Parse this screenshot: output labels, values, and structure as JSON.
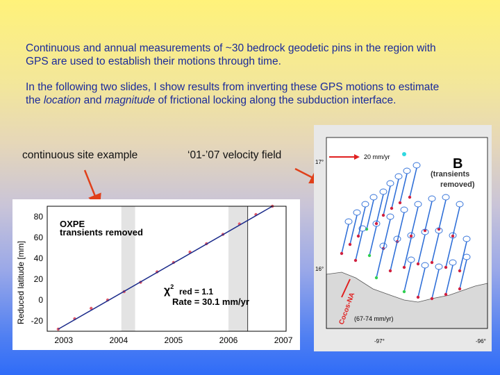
{
  "slide": {
    "para1": "Continuous and annual measurements of ~30 bedrock geodetic pins in the region with GPS are used to establish their motions through time.",
    "para2_before": "In the following two slides, I show results from inverting these GPS motions to estimate the ",
    "para2_em1": "location",
    "para2_mid": " and ",
    "para2_em2": "magnitude",
    "para2_after": " of frictional locking along the subduction interface.",
    "label_left": "continuous site example",
    "label_right": "‘01-’07 velocity field"
  },
  "timeseries": {
    "ylabel": "Reduced latitude [mm]",
    "site": "OXPE",
    "subtitle": "transients removed",
    "chi_label": "red = 1.1",
    "rate": "Rate = 30.1 mm/yr",
    "yticks": [
      "80",
      "60",
      "40",
      "20",
      "0",
      "-20"
    ],
    "xticks": [
      "2003",
      "2004",
      "2005",
      "2006",
      "2007"
    ]
  },
  "map": {
    "scale_label": "20 mm/yr",
    "panel_letter": "B",
    "note_line1": "(transients",
    "note_line2": "removed)",
    "lat_top": "17°",
    "lat_mid": "16°",
    "lon_left": "-97°",
    "lon_right": "-96°",
    "trench_rate": "(67-74 mm/yr)",
    "coco_label": "Cocos-NA"
  },
  "chart_data": {
    "type": "scatter",
    "title": "OXPE",
    "xlabel": "",
    "ylabel": "Reduced latitude [mm]",
    "xlim": [
      2002.7,
      2007.05
    ],
    "ylim": [
      -30,
      90
    ],
    "shaded_intervals": [
      [
        2004.05,
        2004.3
      ],
      [
        2006.0,
        2006.35
      ]
    ],
    "x": [
      2002.9,
      2003.2,
      2003.5,
      2003.8,
      2004.1,
      2004.4,
      2004.7,
      2005.0,
      2005.3,
      2005.6,
      2005.9,
      2006.2,
      2006.5,
      2006.8
    ],
    "values": [
      -28,
      -18,
      -8,
      0,
      8,
      17,
      27,
      36,
      46,
      54,
      63,
      73,
      82,
      90
    ],
    "series": [
      {
        "values": [
          -28,
          -18,
          -8,
          0,
          8,
          17,
          27,
          36,
          46,
          54,
          63,
          73,
          82,
          90
        ]
      }
    ]
  }
}
